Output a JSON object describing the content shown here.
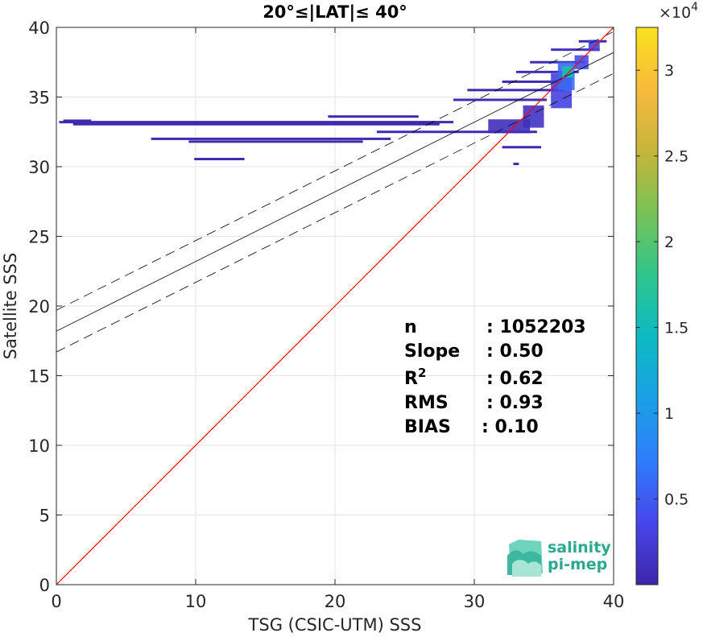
{
  "chart_data": {
    "type": "heatmap",
    "title": "20°≤|LAT|≤ 40°",
    "xlabel": "TSG (CSIC-UTM) SSS",
    "ylabel": "Satellite SSS",
    "xlim": [
      0,
      40
    ],
    "ylim": [
      0,
      40
    ],
    "xticks": [
      0,
      10,
      20,
      30,
      40
    ],
    "yticks": [
      0,
      5,
      10,
      15,
      20,
      25,
      30,
      35,
      40
    ],
    "grid": true,
    "colorbar": {
      "range": [
        0,
        32500
      ],
      "ticks": [
        "0.5",
        "1",
        "1.5",
        "2",
        "2.5",
        "3"
      ],
      "tick_values": [
        5000,
        10000,
        15000,
        20000,
        25000,
        30000
      ],
      "multiplier_base": "×10",
      "multiplier_exp": "4",
      "colormap": [
        "#3e26a8",
        "#4746eb",
        "#2f7dfc",
        "#1aa0e6",
        "#0cbac2",
        "#2fc58c",
        "#78c356",
        "#c6b53b",
        "#f7ba3c",
        "#f9e21e"
      ]
    },
    "density_rows": [
      {
        "y": 33.3,
        "x0": 0.5,
        "x1": 2.5,
        "v": 300
      },
      {
        "y": 33.2,
        "x0": 0.2,
        "x1": 28.5,
        "v": 400
      },
      {
        "y": 33.05,
        "x0": 1.2,
        "x1": 27.5,
        "v": 300
      },
      {
        "y": 32.0,
        "x0": 6.8,
        "x1": 24.0,
        "v": 500
      },
      {
        "y": 31.8,
        "x0": 9.5,
        "x1": 22.0,
        "v": 400
      },
      {
        "y": 30.55,
        "x0": 9.9,
        "x1": 13.5,
        "v": 400
      },
      {
        "y": 32.5,
        "x0": 23.0,
        "x1": 34.5,
        "v": 600
      },
      {
        "y": 33.6,
        "x0": 19.5,
        "x1": 26.0,
        "v": 300
      },
      {
        "y": 34.8,
        "x0": 28.5,
        "x1": 35.2,
        "v": 500
      },
      {
        "y": 35.5,
        "x0": 29.5,
        "x1": 36.5,
        "v": 600
      },
      {
        "y": 36.1,
        "x0": 32.0,
        "x1": 36.0,
        "v": 700
      },
      {
        "y": 36.8,
        "x0": 33.0,
        "x1": 37.5,
        "v": 900
      },
      {
        "y": 37.5,
        "x0": 34.0,
        "x1": 38.0,
        "v": 900
      },
      {
        "y": 38.4,
        "x0": 35.5,
        "x1": 39.0,
        "v": 1200
      },
      {
        "y": 39.0,
        "x0": 37.5,
        "x1": 39.5,
        "v": 800
      },
      {
        "y": 30.2,
        "x0": 32.8,
        "x1": 33.2,
        "v": 500
      },
      {
        "y": 31.4,
        "x0": 32.0,
        "x1": 34.8,
        "v": 500
      }
    ],
    "density_cells": [
      {
        "x": 35.5,
        "y": 34.2,
        "w": 1.5,
        "h": 2.5,
        "v": 3000
      },
      {
        "x": 36.0,
        "y": 35.5,
        "w": 1.2,
        "h": 2.0,
        "v": 6000
      },
      {
        "x": 36.3,
        "y": 36.4,
        "w": 0.8,
        "h": 0.8,
        "v": 16000
      },
      {
        "x": 37.2,
        "y": 37.0,
        "w": 1.0,
        "h": 1.0,
        "v": 4000
      },
      {
        "x": 38.2,
        "y": 38.3,
        "w": 0.8,
        "h": 0.8,
        "v": 3000
      },
      {
        "x": 33.5,
        "y": 32.8,
        "w": 1.5,
        "h": 1.6,
        "v": 1500
      },
      {
        "x": 31.0,
        "y": 32.4,
        "w": 3.0,
        "h": 1.0,
        "v": 1000
      }
    ],
    "one_to_one_line": {
      "x": [
        0,
        40
      ],
      "y": [
        0,
        40
      ],
      "color": "#ff0000"
    },
    "regression_line": {
      "x": [
        0,
        40
      ],
      "y": [
        18.2,
        38.2
      ]
    },
    "confidence_upper": {
      "x": [
        0,
        40
      ],
      "y": [
        19.7,
        39.7
      ]
    },
    "confidence_lower": {
      "x": [
        0,
        40
      ],
      "y": [
        16.7,
        36.7
      ]
    },
    "stats": [
      {
        "label": "n",
        "value": ": 1052203"
      },
      {
        "label": "Slope",
        "value": ": 0.50"
      },
      {
        "label": "R",
        "sup": "2",
        "value": ": 0.62"
      },
      {
        "label": "RMS",
        "value": ": 0.93"
      },
      {
        "label": "BIAS",
        "value": ": 0.10"
      }
    ]
  },
  "logo": {
    "line1": "salinity",
    "line2": "pi-mep"
  }
}
